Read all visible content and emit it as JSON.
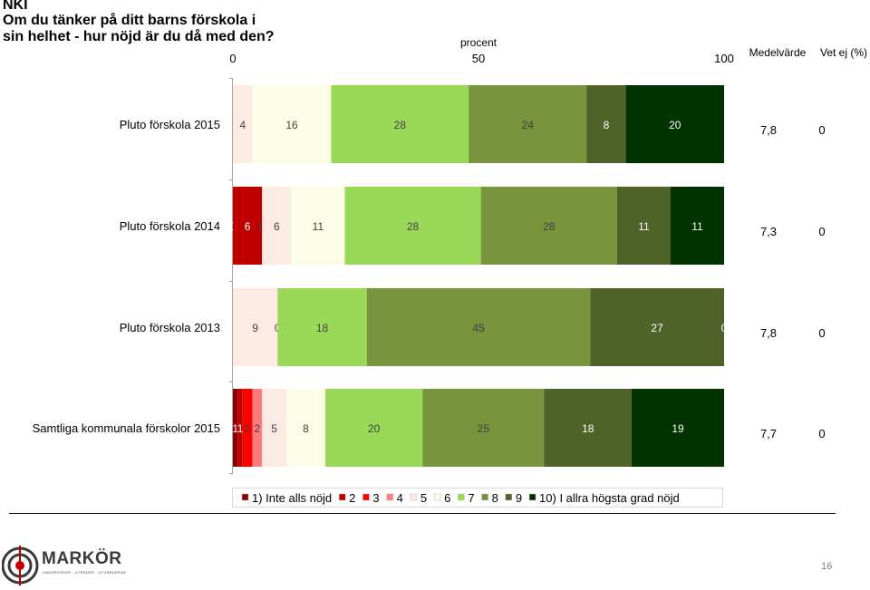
{
  "header": {
    "brand": "NKI",
    "question": "Om du tänker på ditt barns förskola i sin helhet - hur nöjd är du då med den?"
  },
  "chart_data": {
    "type": "bar",
    "orientation": "horizontal",
    "stacked": true,
    "xlabel": "procent",
    "xlim": [
      0,
      100
    ],
    "xticks": [
      "0",
      "50",
      "100"
    ],
    "extra_columns": [
      "Medelvärde",
      "Vet ej (%)"
    ],
    "categories": [
      "Pluto förskola 2015",
      "Pluto förskola 2014",
      "Pluto förskola 2013",
      "Samtliga kommunala förskolor 2015"
    ],
    "series": [
      {
        "name": "1) Inte alls nöjd",
        "color": "#8b0000",
        "values": [
          0,
          0,
          0,
          1
        ]
      },
      {
        "name": "2",
        "color": "#c00000",
        "values": [
          0,
          6,
          0,
          1
        ]
      },
      {
        "name": "3",
        "color": "#ff0000",
        "values": [
          0,
          0,
          0,
          2
        ]
      },
      {
        "name": "4",
        "color": "#ff7b7b",
        "values": [
          0,
          0,
          0,
          2
        ]
      },
      {
        "name": "5",
        "color": "#fdeae2",
        "values": [
          4,
          6,
          9,
          5
        ]
      },
      {
        "name": "6",
        "color": "#fdfde6",
        "values": [
          16,
          11,
          0,
          8
        ]
      },
      {
        "name": "7",
        "color": "#9ad957",
        "values": [
          28,
          28,
          18,
          20
        ]
      },
      {
        "name": "8",
        "color": "#77933c",
        "values": [
          24,
          28,
          45,
          25
        ]
      },
      {
        "name": "9",
        "color": "#4f6228",
        "values": [
          8,
          11,
          27,
          18
        ]
      },
      {
        "name": "10) I allra högsta grad nöjd",
        "color": "#003300",
        "values": [
          20,
          11,
          0,
          19
        ]
      }
    ],
    "labels": [
      [
        "",
        "",
        "",
        "",
        "4",
        "16",
        "28",
        "24",
        "8",
        "20"
      ],
      [
        "0",
        "6",
        "0",
        "",
        "6",
        "11",
        "28",
        "28",
        "11",
        "11"
      ],
      [
        "",
        "",
        "",
        "",
        "9",
        "0",
        "18",
        "45",
        "27",
        "0"
      ],
      [
        "1",
        "1",
        "2",
        "2",
        "5",
        "8",
        "20",
        "25",
        "18",
        "19"
      ]
    ],
    "medelvarde": [
      "7,8",
      "7,3",
      "7,8",
      "7,7"
    ],
    "vet_ej": [
      "0",
      "0",
      "0",
      "0"
    ]
  },
  "footer": {
    "logo_text": "MARKÖR",
    "logo_sub": "UNDERSÖKER · UTREDER · UTVÄRDERAR",
    "page_number": "16"
  }
}
